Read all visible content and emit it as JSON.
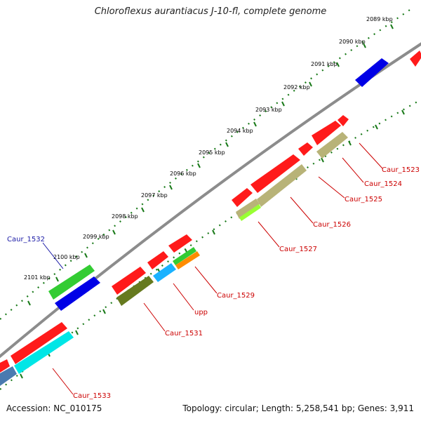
{
  "title": "Chloroflexus aurantiacus J-10-fl, complete genome",
  "footer": {
    "accession": "Accession: NC_010175",
    "summary": "Topology: circular; Length: 5,258,541 bp; Genes: 3,911"
  },
  "colors": {
    "backbone": "#8c8c8c",
    "scale_dots": "#1a7a1a",
    "label_default": "#cc0000",
    "label_blue": "#1a1aa6",
    "forward_red": "#ff1a1a",
    "reverse_red": "#e60000",
    "blue_gene": "#0000e6",
    "green_gene": "#33cc33",
    "olive_gene": "#667a1f",
    "khaki_gene": "#b8b378",
    "lime_gene": "#99ff33",
    "sky_gene": "#1ab2ff",
    "cyan_gene": "#00e6e6",
    "orange_gene": "#ff8c00",
    "steel_gene": "#4a7ab0"
  },
  "scale": {
    "ticks": [
      {
        "label": "2089 kbp"
      },
      {
        "label": "2090 kbp"
      },
      {
        "label": "2091 kbp"
      },
      {
        "label": "2092 kbp"
      },
      {
        "label": "2093 kbp"
      },
      {
        "label": "2094 kbp"
      },
      {
        "label": "2095 kbp"
      },
      {
        "label": "2096 kbp"
      },
      {
        "label": "2097 kbp"
      },
      {
        "label": "2098 kbp"
      },
      {
        "label": "2099 kbp"
      },
      {
        "label": "2100 kbp"
      },
      {
        "label": "2101 kbp"
      }
    ]
  },
  "gene_labels": [
    {
      "text": "Caur_1523",
      "color": "#cc0000"
    },
    {
      "text": "Caur_1524",
      "color": "#cc0000"
    },
    {
      "text": "Caur_1525",
      "color": "#cc0000"
    },
    {
      "text": "Caur_1526",
      "color": "#cc0000"
    },
    {
      "text": "Caur_1527",
      "color": "#cc0000"
    },
    {
      "text": "Caur_1529",
      "color": "#cc0000"
    },
    {
      "text": "upp",
      "color": "#cc0000"
    },
    {
      "text": "Caur_1531",
      "color": "#cc0000"
    },
    {
      "text": "Caur_1532",
      "color": "#1a1aa6"
    },
    {
      "text": "Caur_1533",
      "color": "#cc0000"
    }
  ]
}
